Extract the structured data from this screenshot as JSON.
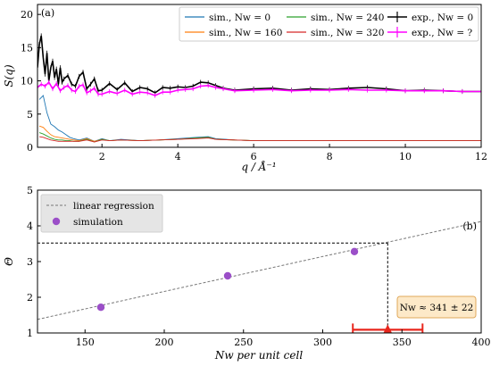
{
  "chart_data": [
    {
      "type": "line",
      "panel_label": "(a)",
      "xlabel": "q / Å⁻¹",
      "ylabel": "S(q)",
      "xlim": [
        0.3,
        12
      ],
      "ylim": [
        0,
        21.5
      ],
      "xticks": [
        "2",
        "4",
        "6",
        "8",
        "10",
        "12"
      ],
      "yticks": [
        "0",
        "5",
        "10",
        "15",
        "20"
      ],
      "legend_placement": "top-right",
      "grid": false,
      "series": [
        {
          "name": "sim., Nw = 0",
          "color": "#1f77b4",
          "x": [
            0.35,
            0.45,
            0.55,
            0.65,
            0.75,
            0.85,
            0.95,
            1.05,
            1.15,
            1.25,
            1.4,
            1.6,
            1.8,
            2.0,
            2.2,
            2.5,
            3.0,
            3.5,
            4.0,
            4.5,
            4.8,
            5.0,
            5.5,
            6.0,
            7.0,
            8.0,
            9.0,
            10.0,
            11.0,
            12.0
          ],
          "y": [
            7.2,
            7.8,
            5.2,
            3.5,
            3.1,
            2.6,
            2.3,
            1.9,
            1.5,
            1.3,
            1.1,
            1.4,
            0.9,
            1.3,
            1.0,
            1.2,
            1.0,
            1.1,
            1.3,
            1.5,
            1.6,
            1.3,
            1.1,
            1.0,
            1.0,
            1.0,
            1.0,
            1.0,
            1.0,
            1.0
          ]
        },
        {
          "name": "sim., Nw = 160",
          "color": "#ff7f0e",
          "x": [
            0.35,
            0.45,
            0.55,
            0.65,
            0.75,
            0.85,
            0.95,
            1.05,
            1.15,
            1.25,
            1.4,
            1.6,
            1.8,
            2.0,
            2.2,
            2.5,
            3.0,
            3.5,
            4.0,
            4.5,
            4.8,
            5.0,
            5.5,
            6.0,
            7.0,
            8.0,
            9.0,
            10.0,
            11.0,
            12.0
          ],
          "y": [
            3.2,
            3.0,
            2.4,
            1.9,
            1.6,
            1.5,
            1.4,
            1.3,
            1.2,
            1.1,
            1.0,
            1.3,
            0.9,
            1.2,
            1.0,
            1.1,
            1.0,
            1.1,
            1.2,
            1.4,
            1.5,
            1.2,
            1.1,
            1.0,
            1.0,
            1.0,
            1.0,
            1.0,
            1.0,
            1.0
          ]
        },
        {
          "name": "sim., Nw = 240",
          "color": "#2ca02c",
          "x": [
            0.35,
            0.45,
            0.55,
            0.65,
            0.75,
            0.85,
            0.95,
            1.05,
            1.15,
            1.25,
            1.4,
            1.6,
            1.8,
            2.0,
            2.2,
            2.5,
            3.0,
            3.5,
            4.0,
            4.5,
            4.8,
            5.0,
            5.5,
            6.0,
            7.0,
            8.0,
            9.0,
            10.0,
            11.0,
            12.0
          ],
          "y": [
            2.2,
            2.0,
            1.7,
            1.4,
            1.2,
            1.1,
            1.1,
            1.0,
            1.0,
            0.9,
            0.9,
            1.2,
            0.8,
            1.2,
            1.0,
            1.1,
            1.0,
            1.1,
            1.2,
            1.4,
            1.5,
            1.2,
            1.1,
            1.0,
            1.0,
            1.0,
            1.0,
            1.0,
            1.0,
            1.0
          ]
        },
        {
          "name": "sim., Nw = 320",
          "color": "#d62728",
          "x": [
            0.35,
            0.45,
            0.55,
            0.65,
            0.75,
            0.85,
            0.95,
            1.05,
            1.15,
            1.25,
            1.4,
            1.6,
            1.8,
            2.0,
            2.2,
            2.5,
            3.0,
            3.5,
            4.0,
            4.5,
            4.8,
            5.0,
            5.5,
            6.0,
            7.0,
            8.0,
            9.0,
            10.0,
            11.0,
            12.0
          ],
          "y": [
            1.6,
            1.5,
            1.3,
            1.1,
            1.0,
            0.9,
            0.9,
            0.9,
            0.9,
            0.9,
            0.9,
            1.1,
            0.8,
            1.1,
            1.0,
            1.1,
            1.0,
            1.1,
            1.2,
            1.3,
            1.4,
            1.2,
            1.1,
            1.0,
            1.0,
            1.0,
            1.0,
            1.0,
            1.0,
            1.0
          ]
        },
        {
          "name": "exp., Nw = 0",
          "color": "#000000",
          "x": [
            0.3,
            0.35,
            0.4,
            0.45,
            0.5,
            0.55,
            0.6,
            0.65,
            0.7,
            0.75,
            0.8,
            0.85,
            0.9,
            0.95,
            1.0,
            1.1,
            1.2,
            1.3,
            1.4,
            1.5,
            1.6,
            1.7,
            1.8,
            1.9,
            2.0,
            2.2,
            2.4,
            2.6,
            2.8,
            3.0,
            3.2,
            3.4,
            3.6,
            3.8,
            4.0,
            4.2,
            4.4,
            4.6,
            4.8,
            5.0,
            5.2,
            5.5,
            6.0,
            6.5,
            7.0,
            7.5,
            8.0,
            8.5,
            9.0,
            9.5,
            10.0,
            10.5,
            11.0,
            11.5,
            12.0
          ],
          "y": [
            12.0,
            15.5,
            16.8,
            13.5,
            11.0,
            14.2,
            10.0,
            12.0,
            13.0,
            10.5,
            11.8,
            9.5,
            12.0,
            9.8,
            10.3,
            10.8,
            9.5,
            9.2,
            10.7,
            11.3,
            8.8,
            9.5,
            10.3,
            8.5,
            8.6,
            9.6,
            8.7,
            9.7,
            8.4,
            9.0,
            8.8,
            8.2,
            9.0,
            8.9,
            9.1,
            9.0,
            9.2,
            9.8,
            9.7,
            9.3,
            8.9,
            8.6,
            8.8,
            8.9,
            8.6,
            8.8,
            8.7,
            8.9,
            9.0,
            8.8,
            8.5,
            8.6,
            8.5,
            8.4,
            8.4
          ]
        },
        {
          "name": "exp., Nw = ?",
          "color": "#ff00ff",
          "x": [
            0.3,
            0.4,
            0.5,
            0.6,
            0.7,
            0.8,
            0.9,
            1.0,
            1.1,
            1.2,
            1.3,
            1.4,
            1.5,
            1.6,
            1.7,
            1.8,
            1.9,
            2.0,
            2.2,
            2.4,
            2.6,
            2.8,
            3.0,
            3.2,
            3.4,
            3.6,
            3.8,
            4.0,
            4.2,
            4.4,
            4.6,
            4.8,
            5.0,
            5.2,
            5.5,
            6.0,
            6.5,
            7.0,
            7.5,
            8.0,
            8.5,
            9.0,
            9.5,
            10.0,
            10.5,
            11.0,
            11.5,
            12.0
          ],
          "y": [
            9.0,
            9.5,
            9.2,
            9.8,
            8.8,
            9.6,
            8.5,
            9.0,
            9.3,
            8.6,
            8.4,
            9.2,
            9.4,
            8.2,
            8.5,
            8.9,
            8.0,
            8.0,
            8.4,
            8.1,
            8.6,
            8.0,
            8.3,
            8.2,
            7.8,
            8.3,
            8.3,
            8.6,
            8.7,
            8.8,
            9.2,
            9.3,
            9.0,
            8.8,
            8.5,
            8.6,
            8.7,
            8.5,
            8.6,
            8.6,
            8.7,
            8.6,
            8.6,
            8.5,
            8.5,
            8.5,
            8.4,
            8.4
          ]
        }
      ]
    },
    {
      "type": "scatter",
      "panel_label": "(b)",
      "xlabel": "Nw per unit cell",
      "ylabel": "Θ",
      "xlim": [
        120,
        400
      ],
      "ylim": [
        1,
        5
      ],
      "xticks": [
        "150",
        "200",
        "250",
        "300",
        "350",
        "400"
      ],
      "yticks": [
        "1",
        "2",
        "3",
        "4",
        "5"
      ],
      "legend_placement": "top-left",
      "grid": false,
      "series": [
        {
          "name": "linear regression",
          "color": "#777777",
          "x": [
            120,
            400
          ],
          "y": [
            1.38,
            4.12
          ]
        },
        {
          "name": "simulation",
          "color": "#9b4fc8",
          "x": [
            160,
            240,
            320
          ],
          "y": [
            1.72,
            2.6,
            3.28
          ]
        }
      ],
      "reference_level": 3.52,
      "estimate": {
        "value": 341,
        "uncertainty": 22,
        "label": "Nw ≈ 341 ± 22",
        "color": "#e8261c"
      }
    }
  ]
}
